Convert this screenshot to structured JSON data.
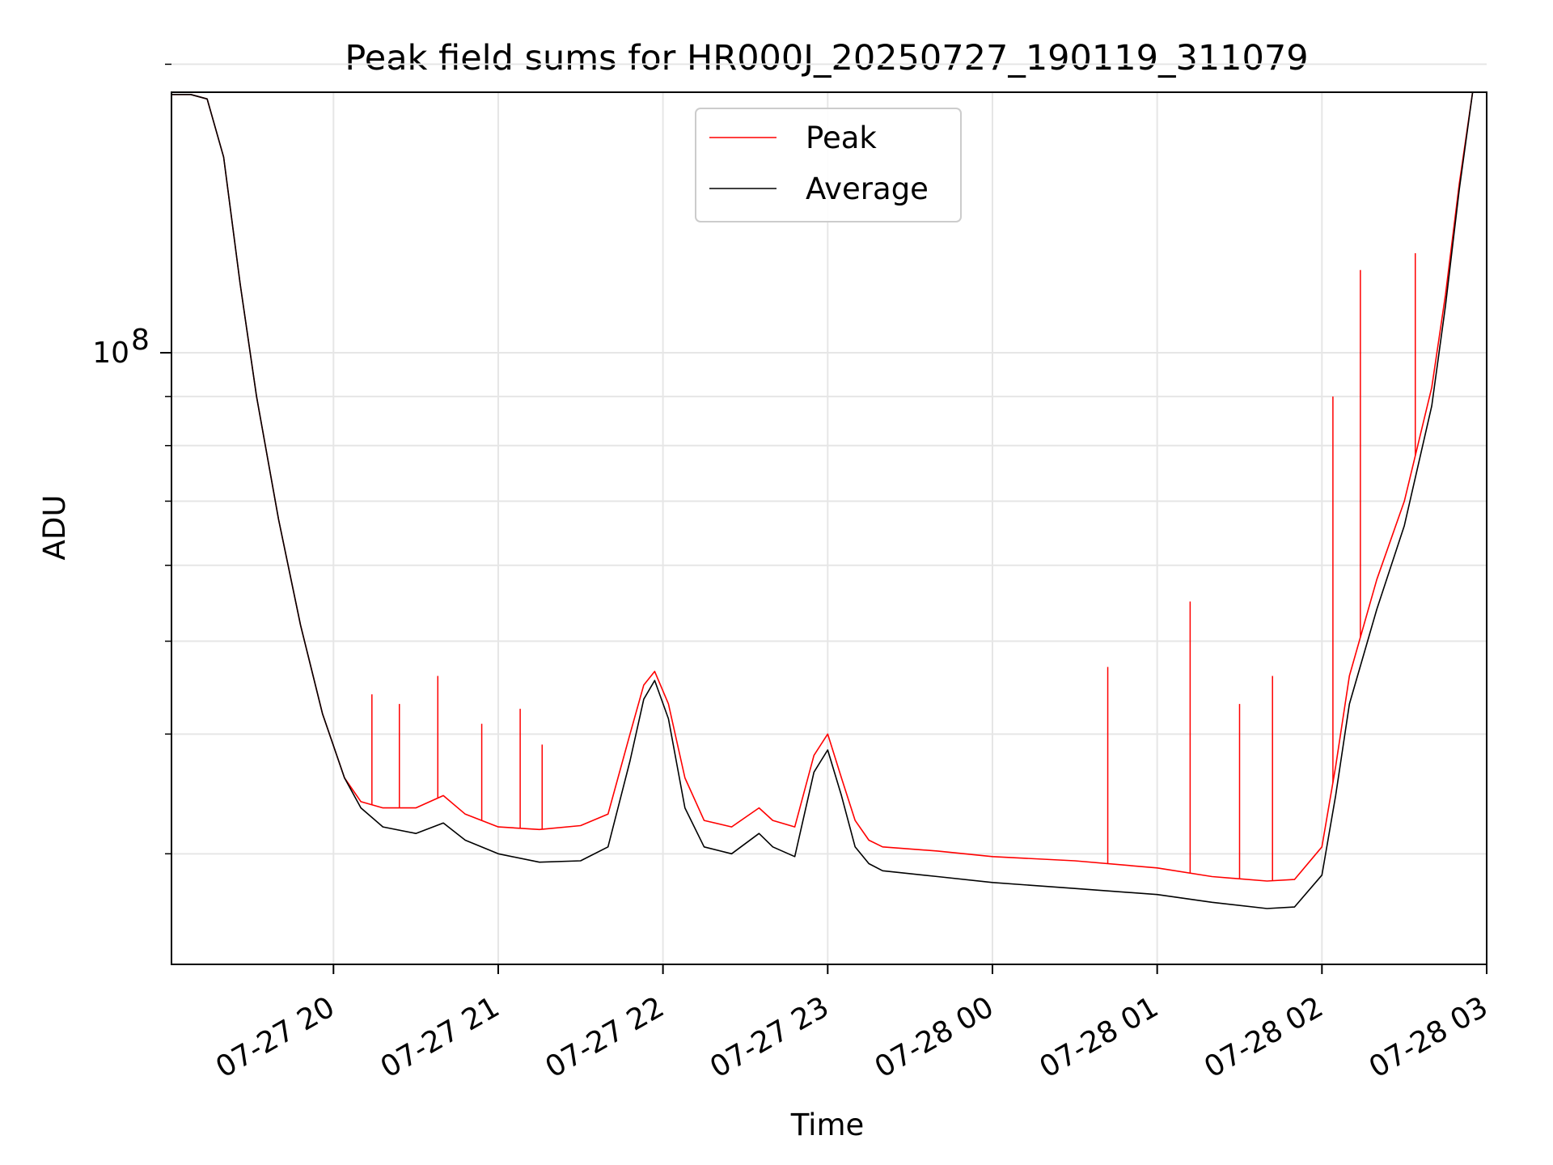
{
  "chart_data": {
    "type": "line",
    "title": "Peak field sums for HR000J_20250727_190119_311079",
    "xlabel": "Time",
    "ylabel": "ADU",
    "y_scale": "log",
    "ylim": [
      23000000,
      187000000
    ],
    "xlim": [
      "2025-07-27T19:01:00",
      "2025-07-28T03:00:00"
    ],
    "grid": true,
    "legend_position": "top-center",
    "y_ticks": [
      {
        "value": 100000000,
        "base": "10",
        "exponent": "8"
      }
    ],
    "y_minor_ticks": [
      30000000,
      40000000,
      50000000,
      60000000,
      70000000,
      80000000,
      90000000,
      200000000
    ],
    "x_ticks": [
      {
        "value": "2025-07-27T20:00:00",
        "label": "07-27 20"
      },
      {
        "value": "2025-07-27T21:00:00",
        "label": "07-27 21"
      },
      {
        "value": "2025-07-27T22:00:00",
        "label": "07-27 22"
      },
      {
        "value": "2025-07-27T23:00:00",
        "label": "07-27 23"
      },
      {
        "value": "2025-07-28T00:00:00",
        "label": "07-28 00"
      },
      {
        "value": "2025-07-28T01:00:00",
        "label": "07-28 01"
      },
      {
        "value": "2025-07-28T02:00:00",
        "label": "07-28 02"
      },
      {
        "value": "2025-07-28T03:00:00",
        "label": "07-28 03"
      }
    ],
    "series": [
      {
        "name": "Peak",
        "color": "#ff0000",
        "x": [
          "2025-07-27T19:01:00",
          "2025-07-27T19:08:00",
          "2025-07-27T19:14:00",
          "2025-07-27T19:20:00",
          "2025-07-27T19:26:00",
          "2025-07-27T19:32:00",
          "2025-07-27T19:40:00",
          "2025-07-27T19:48:00",
          "2025-07-27T19:56:00",
          "2025-07-27T20:04:00",
          "2025-07-27T20:10:00",
          "2025-07-27T20:18:00",
          "2025-07-27T20:30:00",
          "2025-07-27T20:40:00",
          "2025-07-27T20:48:00",
          "2025-07-27T21:00:00",
          "2025-07-27T21:15:00",
          "2025-07-27T21:30:00",
          "2025-07-27T21:40:00",
          "2025-07-27T21:48:00",
          "2025-07-27T21:53:00",
          "2025-07-27T21:57:00",
          "2025-07-27T22:02:00",
          "2025-07-27T22:08:00",
          "2025-07-27T22:15:00",
          "2025-07-27T22:25:00",
          "2025-07-27T22:35:00",
          "2025-07-27T22:40:00",
          "2025-07-27T22:48:00",
          "2025-07-27T22:55:00",
          "2025-07-27T23:00:00",
          "2025-07-27T23:05:00",
          "2025-07-27T23:10:00",
          "2025-07-27T23:15:00",
          "2025-07-27T23:20:00",
          "2025-07-27T23:40:00",
          "2025-07-28T00:00:00",
          "2025-07-28T00:30:00",
          "2025-07-28T01:00:00",
          "2025-07-28T01:20:00",
          "2025-07-28T01:40:00",
          "2025-07-28T01:50:00",
          "2025-07-28T02:00:00",
          "2025-07-28T02:05:00",
          "2025-07-28T02:10:00",
          "2025-07-28T02:20:00",
          "2025-07-28T02:30:00",
          "2025-07-28T02:40:00",
          "2025-07-28T02:45:00",
          "2025-07-28T02:50:00",
          "2025-07-28T02:55:00"
        ],
        "values": [
          186000000,
          186000000,
          184000000,
          160000000,
          118000000,
          90000000,
          67000000,
          52000000,
          42000000,
          36000000,
          34000000,
          33500000,
          33500000,
          34500000,
          33000000,
          32000000,
          31800000,
          32100000,
          33000000,
          40000000,
          45000000,
          46500000,
          43000000,
          36000000,
          32500000,
          32000000,
          33500000,
          32500000,
          32000000,
          38000000,
          40000000,
          36000000,
          32500000,
          31000000,
          30500000,
          30200000,
          29800000,
          29500000,
          29000000,
          28400000,
          28100000,
          28200000,
          30500000,
          37000000,
          46000000,
          58000000,
          70000000,
          92000000,
          115000000,
          150000000,
          188000000
        ]
      },
      {
        "name": "Average",
        "color": "#000000",
        "x": [
          "2025-07-27T19:01:00",
          "2025-07-27T19:08:00",
          "2025-07-27T19:14:00",
          "2025-07-27T19:20:00",
          "2025-07-27T19:26:00",
          "2025-07-27T19:32:00",
          "2025-07-27T19:40:00",
          "2025-07-27T19:48:00",
          "2025-07-27T19:56:00",
          "2025-07-27T20:04:00",
          "2025-07-27T20:10:00",
          "2025-07-27T20:18:00",
          "2025-07-27T20:30:00",
          "2025-07-27T20:40:00",
          "2025-07-27T20:48:00",
          "2025-07-27T21:00:00",
          "2025-07-27T21:15:00",
          "2025-07-27T21:30:00",
          "2025-07-27T21:40:00",
          "2025-07-27T21:48:00",
          "2025-07-27T21:53:00",
          "2025-07-27T21:57:00",
          "2025-07-27T22:02:00",
          "2025-07-27T22:08:00",
          "2025-07-27T22:15:00",
          "2025-07-27T22:25:00",
          "2025-07-27T22:35:00",
          "2025-07-27T22:40:00",
          "2025-07-27T22:48:00",
          "2025-07-27T22:55:00",
          "2025-07-27T23:00:00",
          "2025-07-27T23:05:00",
          "2025-07-27T23:10:00",
          "2025-07-27T23:15:00",
          "2025-07-27T23:20:00",
          "2025-07-27T23:40:00",
          "2025-07-28T00:00:00",
          "2025-07-28T00:30:00",
          "2025-07-28T01:00:00",
          "2025-07-28T01:20:00",
          "2025-07-28T01:40:00",
          "2025-07-28T01:50:00",
          "2025-07-28T02:00:00",
          "2025-07-28T02:05:00",
          "2025-07-28T02:10:00",
          "2025-07-28T02:20:00",
          "2025-07-28T02:30:00",
          "2025-07-28T02:40:00",
          "2025-07-28T02:45:00",
          "2025-07-28T02:50:00",
          "2025-07-28T02:55:00"
        ],
        "values": [
          186000000,
          186000000,
          184000000,
          160000000,
          118000000,
          90000000,
          67000000,
          52000000,
          42000000,
          36000000,
          33500000,
          32000000,
          31500000,
          32300000,
          31000000,
          30000000,
          29400000,
          29500000,
          30500000,
          37500000,
          43500000,
          45500000,
          41500000,
          33500000,
          30500000,
          30000000,
          31500000,
          30500000,
          29800000,
          36500000,
          38500000,
          34500000,
          30500000,
          29300000,
          28800000,
          28400000,
          28000000,
          27600000,
          27200000,
          26700000,
          26300000,
          26400000,
          28500000,
          34500000,
          43000000,
          54000000,
          66000000,
          88000000,
          112000000,
          148000000,
          188000000
        ]
      }
    ],
    "spikes": {
      "Peak": [
        [
          "2025-07-27T20:14:00",
          44000000
        ],
        [
          "2025-07-27T20:24:00",
          43000000
        ],
        [
          "2025-07-27T20:38:00",
          46000000
        ],
        [
          "2025-07-27T20:54:00",
          41000000
        ],
        [
          "2025-07-27T21:08:00",
          42500000
        ],
        [
          "2025-07-27T21:16:00",
          39000000
        ],
        [
          "2025-07-28T00:42:00",
          47000000
        ],
        [
          "2025-07-28T01:12:00",
          55000000
        ],
        [
          "2025-07-28T01:30:00",
          43000000
        ],
        [
          "2025-07-28T01:42:00",
          46000000
        ],
        [
          "2025-07-28T02:04:00",
          90000000
        ],
        [
          "2025-07-28T02:14:00",
          122000000
        ],
        [
          "2025-07-28T02:34:00",
          127000000
        ]
      ]
    }
  }
}
